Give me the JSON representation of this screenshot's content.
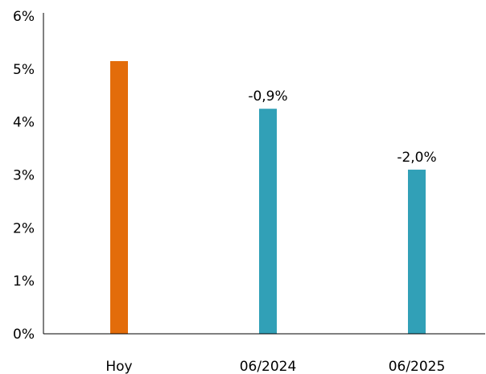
{
  "chart_data": {
    "type": "bar",
    "title": "",
    "xlabel": "",
    "ylabel": "",
    "categories": [
      "Hoy",
      "06/2024",
      "06/2025"
    ],
    "values": [
      5.15,
      4.25,
      3.1
    ],
    "bar_colors": [
      "#E36C0A",
      "#31A0B7",
      "#31A0B7"
    ],
    "data_labels": [
      "",
      "-0,9%",
      "-2,0%"
    ],
    "ylim": [
      0,
      6
    ],
    "yticks": [
      0,
      1,
      2,
      3,
      4,
      5,
      6
    ],
    "ytick_labels": [
      "0%",
      "1%",
      "2%",
      "3%",
      "4%",
      "5%",
      "6%"
    ],
    "grid": false,
    "legend": "none"
  }
}
